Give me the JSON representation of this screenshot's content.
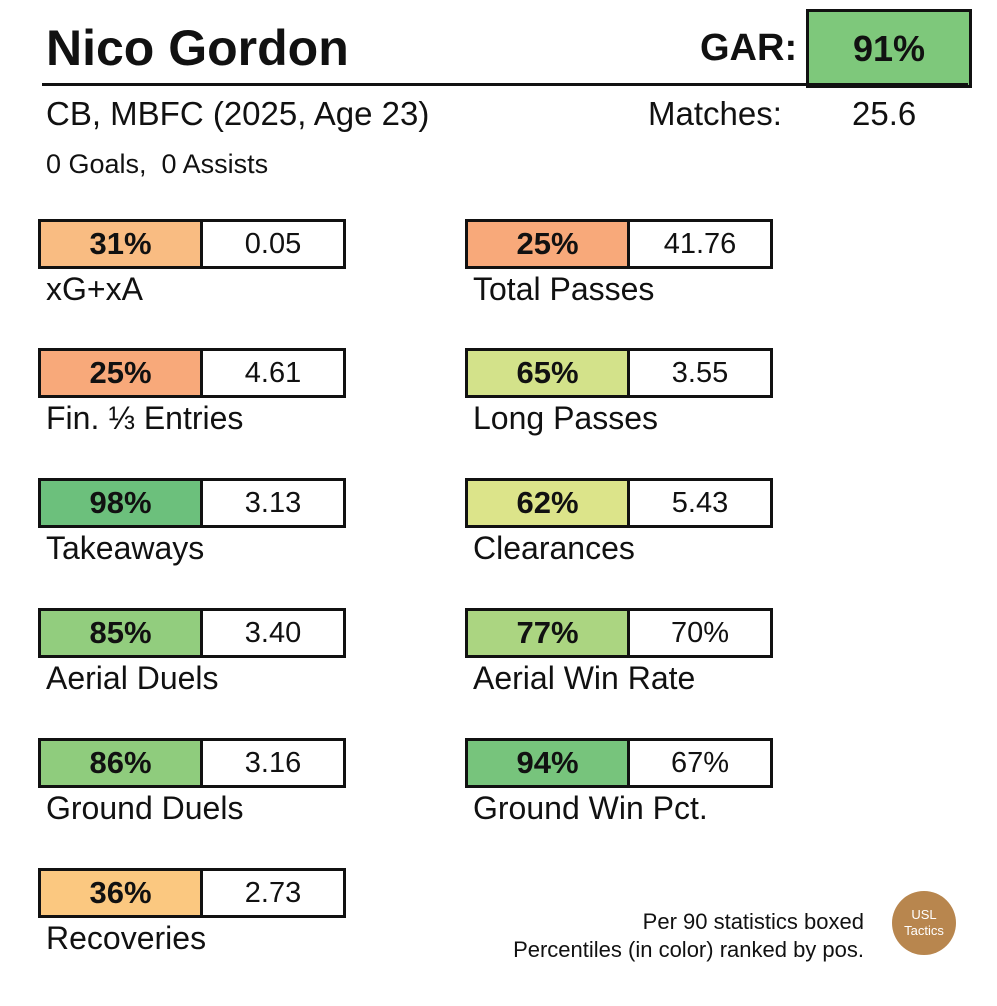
{
  "player": {
    "name": "Nico Gordon",
    "subtitle": "CB, MBFC (2025, Age 23)",
    "goals_assists": "0 Goals,  0 Assists",
    "gar_label": "GAR:",
    "gar_value": "91%",
    "matches_label": "Matches:",
    "matches_value": "25.6"
  },
  "colors": {
    "gar": "#7ec87b"
  },
  "stats": [
    {
      "label": "xG+xA",
      "pct": "31%",
      "value": "0.05",
      "color": "#f9bc82"
    },
    {
      "label": "Total Passes",
      "pct": "25%",
      "value": "41.76",
      "color": "#f8a97a"
    },
    {
      "label": "Fin. ⅓ Entries",
      "pct": "25%",
      "value": "4.61",
      "color": "#f8a97a"
    },
    {
      "label": "Long Passes",
      "pct": "65%",
      "value": "3.55",
      "color": "#d3e28a"
    },
    {
      "label": "Takeaways",
      "pct": "98%",
      "value": "3.13",
      "color": "#6cc07c"
    },
    {
      "label": "Clearances",
      "pct": "62%",
      "value": "5.43",
      "color": "#dce48a"
    },
    {
      "label": "Aerial Duels",
      "pct": "85%",
      "value": "3.40",
      "color": "#92cd7e"
    },
    {
      "label": "Aerial Win Rate",
      "pct": "77%",
      "value": "70%",
      "color": "#abd581"
    },
    {
      "label": "Ground Duels",
      "pct": "86%",
      "value": "3.16",
      "color": "#8fcc7d"
    },
    {
      "label": "Ground Win Pct.",
      "pct": "94%",
      "value": "67%",
      "color": "#77c47c"
    },
    {
      "label": "Recoveries",
      "pct": "36%",
      "value": "2.73",
      "color": "#fbc880"
    }
  ],
  "footer": {
    "line1": "Per 90 statistics boxed",
    "line2": "Percentiles (in color) ranked by pos.",
    "logo_line1": "USL",
    "logo_line2": "Tactics"
  }
}
